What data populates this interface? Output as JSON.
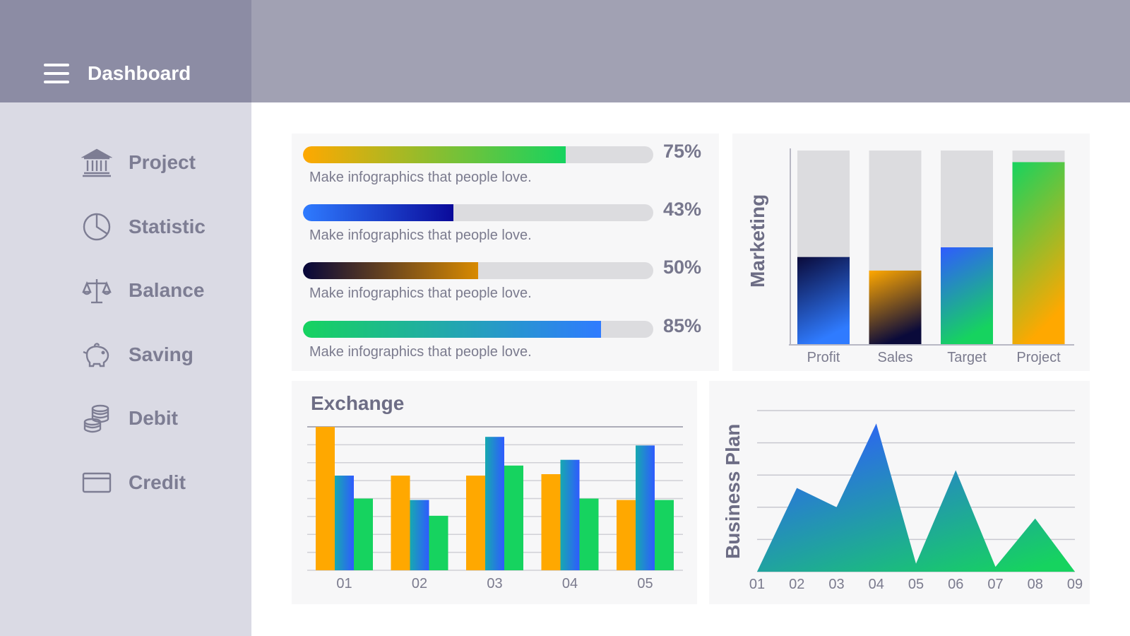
{
  "sidebar": {
    "title": "Dashboard",
    "items": [
      {
        "label": "Project",
        "icon": "bank-icon"
      },
      {
        "label": "Statistic",
        "icon": "pie-chart-icon"
      },
      {
        "label": "Balance",
        "icon": "scale-icon"
      },
      {
        "label": "Saving",
        "icon": "piggy-bank-icon"
      },
      {
        "label": "Debit",
        "icon": "coins-icon"
      },
      {
        "label": "Credit",
        "icon": "credit-card-icon"
      }
    ]
  },
  "colors": {
    "sidebar_bg": "#dadae4",
    "sidebar_head_bg": "#8c8ca4",
    "topbar_bg": "#a1a1b3",
    "text_muted": "#7d7d93",
    "orange": "#ffa800",
    "blue": "#2f5bff",
    "green": "#16d35f",
    "navy": "#0a0a3a"
  },
  "progress": [
    {
      "percent": 75,
      "label": "75%",
      "caption": "Make infographics that people love.",
      "gradient": [
        "#ffa800",
        "#16d35f"
      ]
    },
    {
      "percent": 43,
      "label": "43%",
      "caption": "Make infographics that people love.",
      "gradient": [
        "#2f7bff",
        "#0a0a9a"
      ]
    },
    {
      "percent": 50,
      "label": "50%",
      "caption": "Make infographics that people love.",
      "gradient": [
        "#06063a",
        "#d88a00"
      ]
    },
    {
      "percent": 85,
      "label": "85%",
      "caption": "Make infographics that people love.",
      "gradient": [
        "#16d35f",
        "#2f7bff"
      ]
    }
  ],
  "chart_data": [
    {
      "type": "bar",
      "title": "Marketing",
      "categories": [
        "Profit",
        "Sales",
        "Target",
        "Project"
      ],
      "values": [
        45,
        38,
        50,
        94
      ],
      "ylim": [
        0,
        100
      ],
      "stacked_background": true,
      "gradients": [
        [
          "#0a0a3a",
          "#2f7bff"
        ],
        [
          "#ffa800",
          "#0a0a3a"
        ],
        [
          "#2f5bff",
          "#16d35f"
        ],
        [
          "#16d35f",
          "#ffa800"
        ]
      ]
    },
    {
      "type": "bar",
      "title": "Exchange",
      "categories": [
        "01",
        "02",
        "03",
        "04",
        "05"
      ],
      "series": [
        {
          "values": [
            100,
            66,
            66,
            67,
            49
          ],
          "color": "#ffa800"
        },
        {
          "values": [
            66,
            49,
            93,
            77,
            87
          ],
          "color": "#2f5bff"
        },
        {
          "values": [
            50,
            38,
            73,
            50,
            49
          ],
          "color": "#16d35f"
        }
      ],
      "ylim": [
        0,
        100
      ],
      "grid": true
    },
    {
      "type": "area",
      "title": "Business Plan",
      "x": [
        "01",
        "02",
        "03",
        "04",
        "05",
        "06",
        "07",
        "08",
        "09"
      ],
      "values": [
        0,
        52,
        40,
        92,
        5,
        63,
        3,
        33,
        0
      ],
      "ylim": [
        0,
        100
      ],
      "grid": true,
      "gradient": [
        "#2f5bff",
        "#16d35f"
      ]
    }
  ]
}
